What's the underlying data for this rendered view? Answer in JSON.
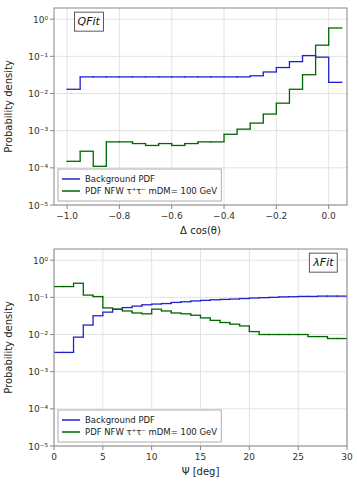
{
  "chart_data": [
    {
      "type": "histogram",
      "title": "QFit",
      "xlabel": "Δ cos(θ)",
      "ylabel": "Probability density",
      "log": "y",
      "grid": true,
      "legend": "lower left",
      "xlim": [
        -1.05,
        0.07
      ],
      "ylim": [
        1e-05,
        2.0
      ],
      "xticks": [
        {
          "value": -1.0,
          "label": "−1.0"
        },
        {
          "value": -0.8,
          "label": "−0.8"
        },
        {
          "value": -0.6,
          "label": "−0.6"
        },
        {
          "value": -0.4,
          "label": "−0.4"
        },
        {
          "value": -0.2,
          "label": "−0.2"
        },
        {
          "value": 0.0,
          "label": "0.0"
        }
      ],
      "yticks": [
        {
          "value": 1e-05,
          "label": "10⁻⁵"
        },
        {
          "value": 0.0001,
          "label": "10⁻⁴"
        },
        {
          "value": 0.001,
          "label": "10⁻³"
        },
        {
          "value": 0.01,
          "label": "10⁻²"
        },
        {
          "value": 0.1,
          "label": "10⁻¹"
        },
        {
          "value": 1,
          "label": "10⁰"
        }
      ],
      "series": [
        {
          "name": "Background PDF",
          "color": "#2222cc",
          "bins": [
            -1.0,
            -0.95,
            -0.9,
            -0.85,
            -0.8,
            -0.75,
            -0.7,
            -0.65,
            -0.6,
            -0.55,
            -0.5,
            -0.45,
            -0.4,
            -0.35,
            -0.3,
            -0.25,
            -0.2,
            -0.15,
            -0.1,
            -0.05,
            0.0,
            0.05
          ],
          "values": [
            0.013,
            0.028,
            0.028,
            0.028,
            0.028,
            0.028,
            0.028,
            0.028,
            0.028,
            0.028,
            0.028,
            0.028,
            0.028,
            0.028,
            0.03,
            0.038,
            0.05,
            0.072,
            0.105,
            0.095,
            0.02
          ]
        },
        {
          "name": "PDF NFW τ⁺τ⁻ mDM= 100 GeV",
          "color": "#006600",
          "bins": [
            -1.0,
            -0.95,
            -0.9,
            -0.85,
            -0.8,
            -0.75,
            -0.7,
            -0.65,
            -0.6,
            -0.55,
            -0.5,
            -0.45,
            -0.4,
            -0.35,
            -0.3,
            -0.25,
            -0.2,
            -0.15,
            -0.1,
            -0.05,
            0.0,
            0.05
          ],
          "values": [
            0.00015,
            0.00028,
            0.00011,
            0.0005,
            0.0005,
            0.00045,
            0.0004,
            0.00045,
            0.0004,
            0.00045,
            0.0005,
            0.0005,
            0.0008,
            0.0011,
            0.0016,
            0.0028,
            0.0055,
            0.013,
            0.032,
            0.2,
            0.58
          ]
        }
      ]
    },
    {
      "type": "histogram",
      "title": "λFit",
      "xlabel": "Ψ [deg]",
      "ylabel": "Probability density",
      "log": "y",
      "grid": true,
      "legend": "lower left",
      "xlim": [
        0,
        30
      ],
      "ylim": [
        1e-05,
        2.0
      ],
      "xticks": [
        0,
        5,
        10,
        15,
        20,
        25,
        30
      ],
      "yticks": [
        {
          "value": 1e-05,
          "label": "10⁻⁵"
        },
        {
          "value": 0.0001,
          "label": "10⁻⁴"
        },
        {
          "value": 0.001,
          "label": "10⁻³"
        },
        {
          "value": 0.01,
          "label": "10⁻²"
        },
        {
          "value": 0.1,
          "label": "10⁻¹"
        },
        {
          "value": 1,
          "label": "10⁰"
        }
      ],
      "series": [
        {
          "name": "Background PDF",
          "color": "#2222cc",
          "bins": [
            0,
            1,
            2,
            3,
            4,
            5,
            6,
            7,
            8,
            9,
            10,
            11,
            12,
            13,
            14,
            15,
            16,
            17,
            18,
            19,
            20,
            21,
            22,
            23,
            24,
            25,
            26,
            27,
            28,
            29,
            30
          ],
          "values": [
            0.0033,
            0.0033,
            0.0085,
            0.018,
            0.032,
            0.04,
            0.048,
            0.053,
            0.058,
            0.063,
            0.066,
            0.068,
            0.073,
            0.076,
            0.08,
            0.083,
            0.086,
            0.088,
            0.09,
            0.093,
            0.096,
            0.098,
            0.1,
            0.103,
            0.104,
            0.106,
            0.106,
            0.108,
            0.108,
            0.108
          ]
        },
        {
          "name": "PDF NFW τ⁺τ⁻ mDM= 100 GeV",
          "color": "#006600",
          "bins": [
            0,
            1,
            2,
            3,
            4,
            5,
            6,
            7,
            8,
            9,
            10,
            11,
            12,
            13,
            14,
            15,
            16,
            17,
            18,
            19,
            20,
            21,
            22,
            23,
            24,
            25,
            26,
            27,
            28,
            29,
            30
          ],
          "values": [
            0.195,
            0.195,
            0.24,
            0.115,
            0.105,
            0.052,
            0.048,
            0.043,
            0.038,
            0.036,
            0.048,
            0.043,
            0.038,
            0.036,
            0.033,
            0.028,
            0.024,
            0.021,
            0.019,
            0.017,
            0.012,
            0.01,
            0.01,
            0.01,
            0.01,
            0.01,
            0.0088,
            0.0088,
            0.0078,
            0.0078
          ]
        }
      ]
    }
  ]
}
